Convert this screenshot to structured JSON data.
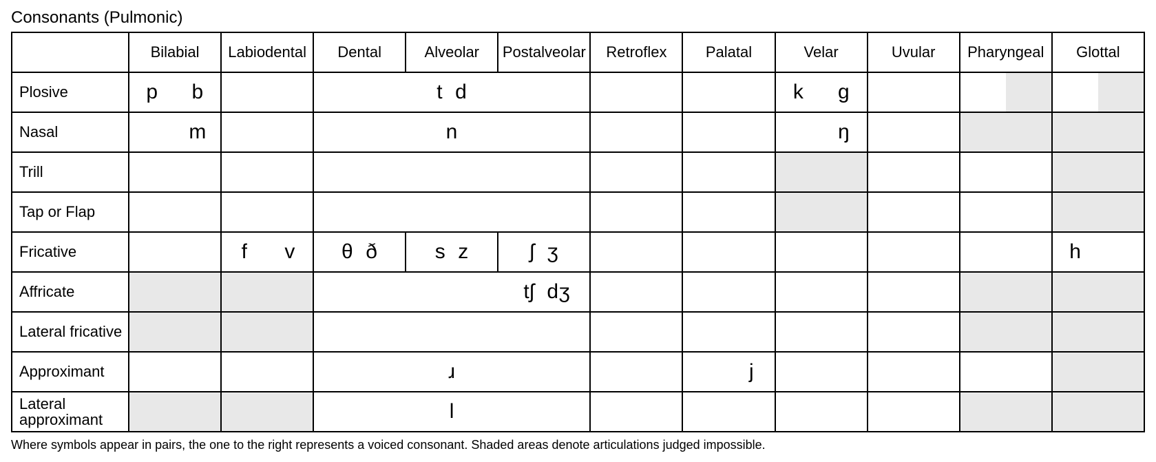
{
  "title": "Consonants (Pulmonic)",
  "footnote": "Where symbols appear in pairs, the one to the right represents a voiced consonant. Shaded areas denote articulations judged impossible.",
  "colors": {
    "background": "#ffffff",
    "text": "#000000",
    "border": "#000000",
    "shaded": "#e8e8e8"
  },
  "typography": {
    "title_fontsize": 24,
    "header_fontsize": 22,
    "rowlabel_fontsize": 22,
    "symbol_fontsize": 30,
    "footnote_fontsize": 18,
    "font_family": "Arial, Helvetica, sans-serif"
  },
  "places": [
    "Bilabial",
    "Labiodental",
    "Dental",
    "Alveolar",
    "Postalveolar",
    "Retroflex",
    "Palatal",
    "Velar",
    "Uvular",
    "Pharyngeal",
    "Glottal"
  ],
  "manners": [
    "Plosive",
    "Nasal",
    "Trill",
    "Tap or Flap",
    "Fricative",
    "Affricate",
    "Lateral\nfricative",
    "Approximant",
    "Lateral\napproximant"
  ],
  "rows": {
    "plosive": {
      "bilabial": {
        "vl": "p",
        "vd": "b"
      },
      "dap_merged": {
        "vl": "t",
        "vd": "d"
      },
      "velar": {
        "vl": "k",
        "vd": "g"
      },
      "pharyngeal": {
        "vl_shaded": false,
        "vd_shaded": true
      },
      "glottal": {
        "vl_shaded": false,
        "vd_shaded": true
      }
    },
    "nasal": {
      "bilabial": {
        "vd": "m"
      },
      "dap_merged": {
        "vd": "n"
      },
      "velar": {
        "vd": "ŋ"
      },
      "pharyngeal": {
        "shaded": true
      },
      "glottal": {
        "shaded": true
      }
    },
    "trill": {
      "velar": {
        "shaded": true
      },
      "glottal": {
        "shaded": true
      }
    },
    "tap": {
      "velar": {
        "shaded": true
      },
      "glottal": {
        "shaded": true
      }
    },
    "fricative": {
      "labiodental": {
        "vl": "f",
        "vd": "v"
      },
      "dental": {
        "vl": "θ",
        "vd": "ð"
      },
      "alveolar": {
        "vl": "s",
        "vd": "z"
      },
      "postalveolar": {
        "vl": "ʃ",
        "vd": "ʒ"
      },
      "glottal": {
        "vl": "h"
      }
    },
    "affricate": {
      "bilabial": {
        "shaded": true
      },
      "labiodental": {
        "shaded": true
      },
      "dap_merged": {
        "vl": "tʃ",
        "vd": "dʒ",
        "align": "right"
      },
      "pharyngeal": {
        "shaded": true
      },
      "glottal": {
        "shaded": true
      }
    },
    "latfric": {
      "bilabial": {
        "shaded": true
      },
      "labiodental": {
        "shaded": true
      },
      "pharyngeal": {
        "shaded": true
      },
      "glottal": {
        "shaded": true
      }
    },
    "approx": {
      "dap_merged": {
        "vd": "ɹ"
      },
      "palatal": {
        "vd": "j"
      },
      "glottal": {
        "shaded": true
      }
    },
    "latapprox": {
      "bilabial": {
        "shaded": true
      },
      "labiodental": {
        "shaded": true
      },
      "dap_merged": {
        "vd": "l"
      },
      "pharyngeal": {
        "shaded": true
      },
      "glottal": {
        "shaded": true
      }
    }
  }
}
